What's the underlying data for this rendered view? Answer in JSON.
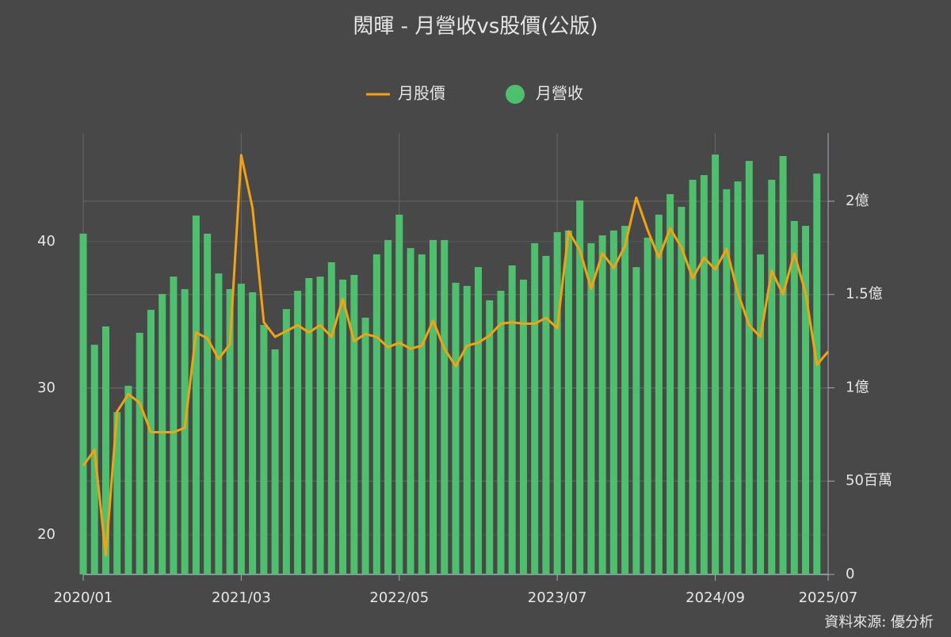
{
  "chart_data": {
    "type": "combo",
    "title": "閎暉 - 月營收vs股價(公版)",
    "source": "資料來源: 優分析",
    "categories": [
      "2020/01",
      null,
      null,
      null,
      null,
      null,
      null,
      null,
      null,
      null,
      null,
      null,
      null,
      null,
      "2021/03",
      null,
      null,
      null,
      null,
      null,
      null,
      null,
      null,
      null,
      null,
      null,
      null,
      null,
      "2022/05",
      null,
      null,
      null,
      null,
      null,
      null,
      null,
      null,
      null,
      null,
      null,
      null,
      null,
      "2023/07",
      null,
      null,
      null,
      null,
      null,
      null,
      null,
      null,
      null,
      null,
      null,
      null,
      null,
      "2024/09",
      null,
      null,
      null,
      null,
      null,
      null,
      null,
      null,
      null,
      "2025/07"
    ],
    "series": [
      {
        "name": "月股價",
        "type": "line",
        "axis": "y",
        "color": "#f2a30f",
        "values": [
          24.7,
          25.8,
          18.6,
          28.4,
          29.6,
          29.0,
          27.0,
          27.0,
          27.0,
          27.3,
          33.8,
          33.4,
          32.0,
          33.0,
          45.9,
          42.3,
          34.5,
          33.5,
          33.9,
          34.3,
          33.8,
          34.3,
          33.5,
          36.1,
          33.2,
          33.7,
          33.5,
          32.8,
          33.1,
          32.7,
          32.9,
          34.6,
          32.7,
          31.5,
          32.9,
          33.1,
          33.6,
          34.4,
          34.5,
          34.4,
          34.4,
          34.8,
          34.1,
          40.7,
          39.4,
          36.8,
          39.2,
          38.2,
          39.7,
          43.0,
          40.8,
          38.9,
          40.9,
          39.6,
          37.5,
          38.9,
          38.1,
          39.5,
          36.5,
          34.3,
          33.5,
          38.0,
          36.4,
          39.2,
          36.5,
          31.6,
          32.5
        ]
      },
      {
        "name": "月營收",
        "type": "bar",
        "axis": "y2",
        "color": "#4cc06c",
        "values": [
          182.6,
          123.1,
          132.9,
          87.0,
          101.1,
          129.5,
          141.8,
          150.3,
          159.6,
          152.9,
          192.3,
          182.6,
          161.3,
          152.9,
          155.8,
          151.2,
          133.7,
          120.6,
          142.2,
          152.0,
          158.8,
          159.6,
          167.3,
          158.0,
          160.5,
          137.6,
          171.5,
          179.2,
          192.8,
          174.9,
          171.5,
          179.2,
          179.2,
          156.3,
          154.6,
          164.7,
          146.9,
          152.0,
          165.6,
          158.0,
          177.5,
          170.7,
          183.4,
          184.3,
          200.4,
          177.5,
          181.7,
          184.3,
          186.8,
          164.7,
          180.5,
          192.8,
          203.8,
          197.0,
          211.5,
          214.0,
          225.0,
          206.4,
          210.6,
          221.6,
          171.5,
          211.5,
          224.2,
          189.4,
          186.8,
          214.8,
          null
        ]
      }
    ],
    "ylim": [
      17.3,
      47.4
    ],
    "yticks": [
      20,
      30,
      40
    ],
    "y2lim": [
      0,
      236.5
    ],
    "y2ticks": [
      0,
      {
        "value": 50,
        "label": "50百萬"
      },
      {
        "value": 100,
        "label": "1億"
      },
      {
        "value": 150,
        "label": "1.5億"
      },
      {
        "value": 200,
        "label": "2億"
      }
    ],
    "grid": true
  }
}
